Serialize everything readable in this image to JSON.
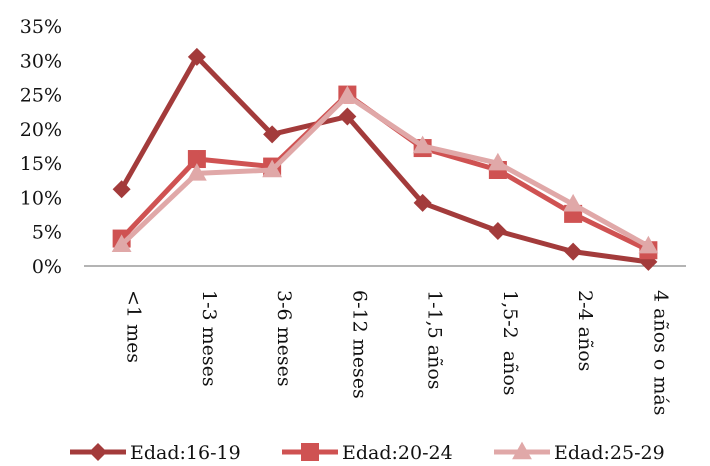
{
  "chart_data": {
    "type": "line",
    "categories": [
      "<1 mes",
      "1-3 meses",
      "3-6 meses",
      "6-12 meses",
      "1-1,5 años",
      "1,5-2  años",
      "2-4 años",
      "4 años o más"
    ],
    "series": [
      {
        "name": "Edad:16-19",
        "color": "#a33b3b",
        "marker": "diamond",
        "values": [
          11.2,
          30.5,
          19.2,
          21.8,
          9.2,
          5.1,
          2.1,
          0.6
        ]
      },
      {
        "name": "Edad:20-24",
        "color": "#cf5252",
        "marker": "square",
        "values": [
          4.0,
          15.6,
          14.5,
          25.0,
          17.2,
          14.0,
          7.6,
          2.3
        ]
      },
      {
        "name": "Edad:25-29",
        "color": "#e0a8a8",
        "marker": "triangle",
        "values": [
          3.1,
          13.5,
          14.0,
          24.8,
          17.5,
          15.0,
          9.0,
          2.9
        ]
      }
    ],
    "ylim": [
      0,
      35
    ],
    "yticks": [
      "0%",
      "5%",
      "10%",
      "15%",
      "20%",
      "25%",
      "30%",
      "35%"
    ],
    "grid": false,
    "legend_position": "bottom"
  }
}
